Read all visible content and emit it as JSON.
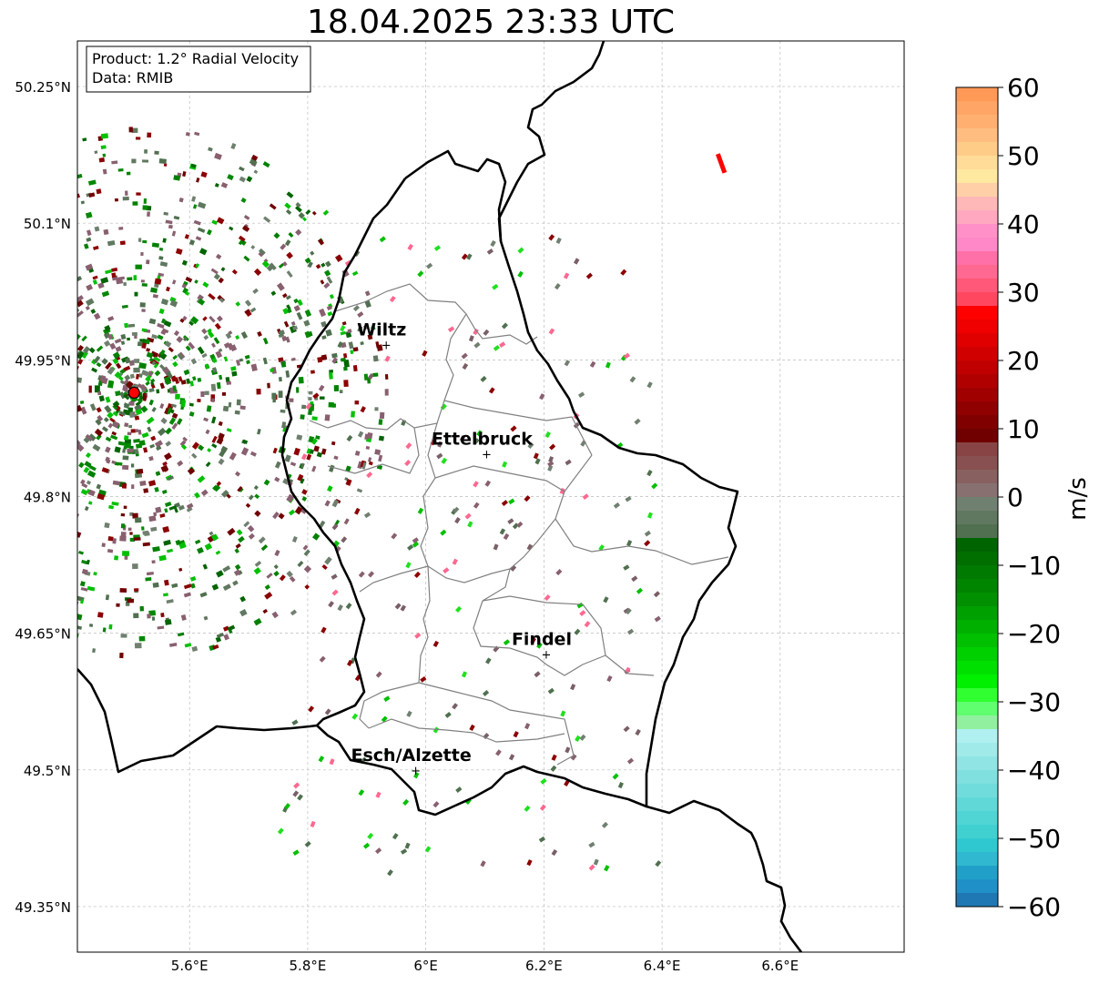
{
  "title": "18.04.2025 23:33 UTC",
  "info_box": {
    "line1": "Product: 1.2° Radial Velocity",
    "line2": "Data: RMIB"
  },
  "map": {
    "lon_range": [
      5.41,
      6.81
    ],
    "lat_range": [
      49.3,
      50.3
    ],
    "lat_ticks": [
      {
        "value": 50.25,
        "label": "50.25°N"
      },
      {
        "value": 50.1,
        "label": "50.1°N"
      },
      {
        "value": 49.95,
        "label": "49.95°N"
      },
      {
        "value": 49.8,
        "label": "49.8°N"
      },
      {
        "value": 49.65,
        "label": "49.65°N"
      },
      {
        "value": 49.5,
        "label": "49.5°N"
      },
      {
        "value": 49.35,
        "label": "49.35°N"
      }
    ],
    "lon_ticks": [
      {
        "value": 5.6,
        "label": "5.6°E"
      },
      {
        "value": 5.8,
        "label": "5.8°E"
      },
      {
        "value": 6.0,
        "label": "6°E"
      },
      {
        "value": 6.2,
        "label": "6.2°E"
      },
      {
        "value": 6.4,
        "label": "6.4°E"
      },
      {
        "value": 6.6,
        "label": "6.6°E"
      }
    ],
    "radar_site": {
      "lon": 5.506,
      "lat": 49.914
    },
    "cities": [
      {
        "name": "Wiltz",
        "lon": 5.933,
        "lat": 49.967
      },
      {
        "name": "Ettelbruck",
        "lon": 6.103,
        "lat": 49.847
      },
      {
        "name": "Findel",
        "lon": 6.204,
        "lat": 49.627
      },
      {
        "name": "Esch/Alzette",
        "lon": 5.983,
        "lat": 49.5
      }
    ],
    "border_color": "#000000",
    "canton_color": "#808080",
    "radar_color": "#ff0000"
  },
  "colorbar": {
    "label": "m/s",
    "min": -60,
    "max": 60,
    "ticks": [
      {
        "value": 60,
        "label": "60"
      },
      {
        "value": 50,
        "label": "50"
      },
      {
        "value": 40,
        "label": "40"
      },
      {
        "value": 30,
        "label": "30"
      },
      {
        "value": 20,
        "label": "20"
      },
      {
        "value": 10,
        "label": "10"
      },
      {
        "value": 0,
        "label": "0"
      },
      {
        "value": -10,
        "label": "−10"
      },
      {
        "value": -20,
        "label": "−20"
      },
      {
        "value": -30,
        "label": "−30"
      },
      {
        "value": -40,
        "label": "−40"
      },
      {
        "value": -50,
        "label": "−50"
      },
      {
        "value": -60,
        "label": "−60"
      }
    ],
    "colors_top_to_bottom": [
      "#ff9955",
      "#ffa565",
      "#ffb070",
      "#ffbe80",
      "#ffcc88",
      "#ffdd99",
      "#ffe8a0",
      "#ffd0a8",
      "#ffb8b8",
      "#ffa8c0",
      "#ff90c8",
      "#ff88c8",
      "#ff70a8",
      "#ff6890",
      "#ff5878",
      "#ff4860",
      "#ff0000",
      "#f00000",
      "#e00000",
      "#d00000",
      "#c00000",
      "#b00000",
      "#a00000",
      "#900000",
      "#800000",
      "#700000",
      "#884444",
      "#885050",
      "#886060",
      "#887070",
      "#708070",
      "#607860",
      "#507050",
      "#006400",
      "#006f00",
      "#007a00",
      "#008500",
      "#009000",
      "#00a000",
      "#00b000",
      "#00c000",
      "#00d000",
      "#00e000",
      "#00f000",
      "#30ff30",
      "#60ff70",
      "#90f0a0",
      "#b0f0f0",
      "#a0eaea",
      "#90e4e4",
      "#80e0e0",
      "#70dcdc",
      "#60d8d8",
      "#50d4d4",
      "#40d0d0",
      "#30c8d0",
      "#30b8d0",
      "#20a0c8",
      "#2090c8",
      "#1f78b4"
    ]
  }
}
